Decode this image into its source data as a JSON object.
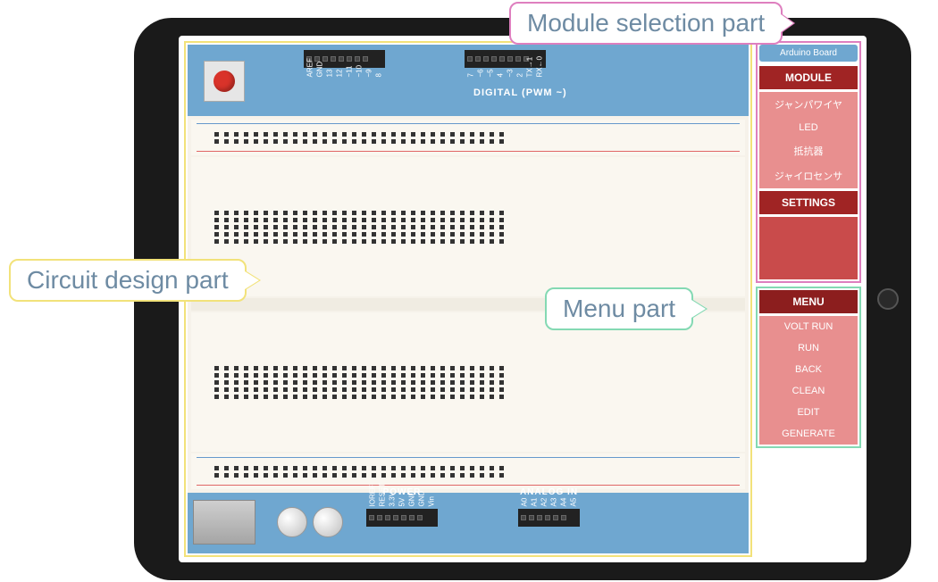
{
  "callouts": {
    "module": "Module selection part",
    "circuit": "Circuit design part",
    "menu": "Menu part"
  },
  "sidebar": {
    "badge": "Arduino Board",
    "module_header": "MODULE",
    "module_items": [
      "ジャンパワイヤ",
      "LED",
      "抵抗器",
      "ジャイロセンサ"
    ],
    "settings_header": "SETTINGS",
    "menu_header": "MENU",
    "menu_items": [
      "VOLT RUN",
      "RUN",
      "BACK",
      "CLEAN",
      "EDIT",
      "GENERATE"
    ]
  },
  "arduino": {
    "digital_label": "DIGITAL (PWM ~)",
    "top_pins_a": [
      "AREF",
      "GND",
      "13",
      "12",
      "~11",
      "~10",
      "~9",
      "8"
    ],
    "top_pins_b": [
      "7",
      "~6",
      "~5",
      "4",
      "~3",
      "2",
      "TX→1",
      "RX←0"
    ],
    "power_label": "POWER",
    "analog_label": "ANALOG IN",
    "power_pins": [
      "IOREF",
      "RESET",
      "3.3V",
      "5V",
      "GND",
      "GND",
      "Vin"
    ],
    "analog_pins": [
      "A0",
      "A1",
      "A2",
      "A3",
      "A4",
      "A5"
    ]
  },
  "style": {
    "board_blue": "#6fa7d0",
    "panel_dark_red": "#8c1e1e",
    "panel_red": "#a02424",
    "panel_item_red": "#e88f8f",
    "callout_text": "#6e8ba3",
    "border_module": "#de7fbf",
    "border_circuit": "#f2e27a",
    "border_menu": "#84d9b3",
    "breadboard_bg": "#f6f2ea"
  },
  "breadboard": {
    "cols": 30,
    "rail_rows": 2,
    "terminal_rows": 5
  }
}
